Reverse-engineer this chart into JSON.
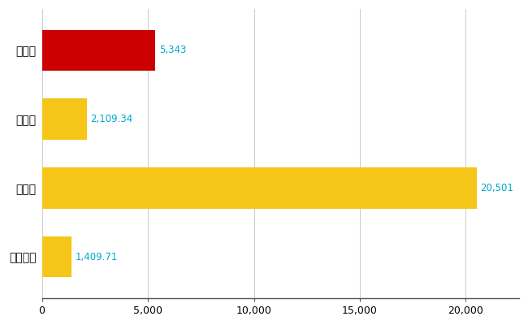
{
  "categories": [
    "上越市",
    "県平均",
    "県最大",
    "全国平均"
  ],
  "values": [
    5343,
    2109.34,
    20501,
    1409.71
  ],
  "labels": [
    "5,343",
    "2,109.34",
    "20,501",
    "1,409.71"
  ],
  "bar_colors": [
    "#cc0000",
    "#f5c518",
    "#f5c518",
    "#f5c518"
  ],
  "xlim": [
    0,
    22500
  ],
  "xticks": [
    0,
    5000,
    10000,
    15000,
    20000
  ],
  "background_color": "#ffffff",
  "grid_color": "#cccccc",
  "label_color": "#00aacc",
  "label_fontsize": 8.5,
  "ytick_fontsize": 10,
  "bar_height": 0.6,
  "figsize": [
    6.5,
    4.0
  ],
  "dpi": 100
}
